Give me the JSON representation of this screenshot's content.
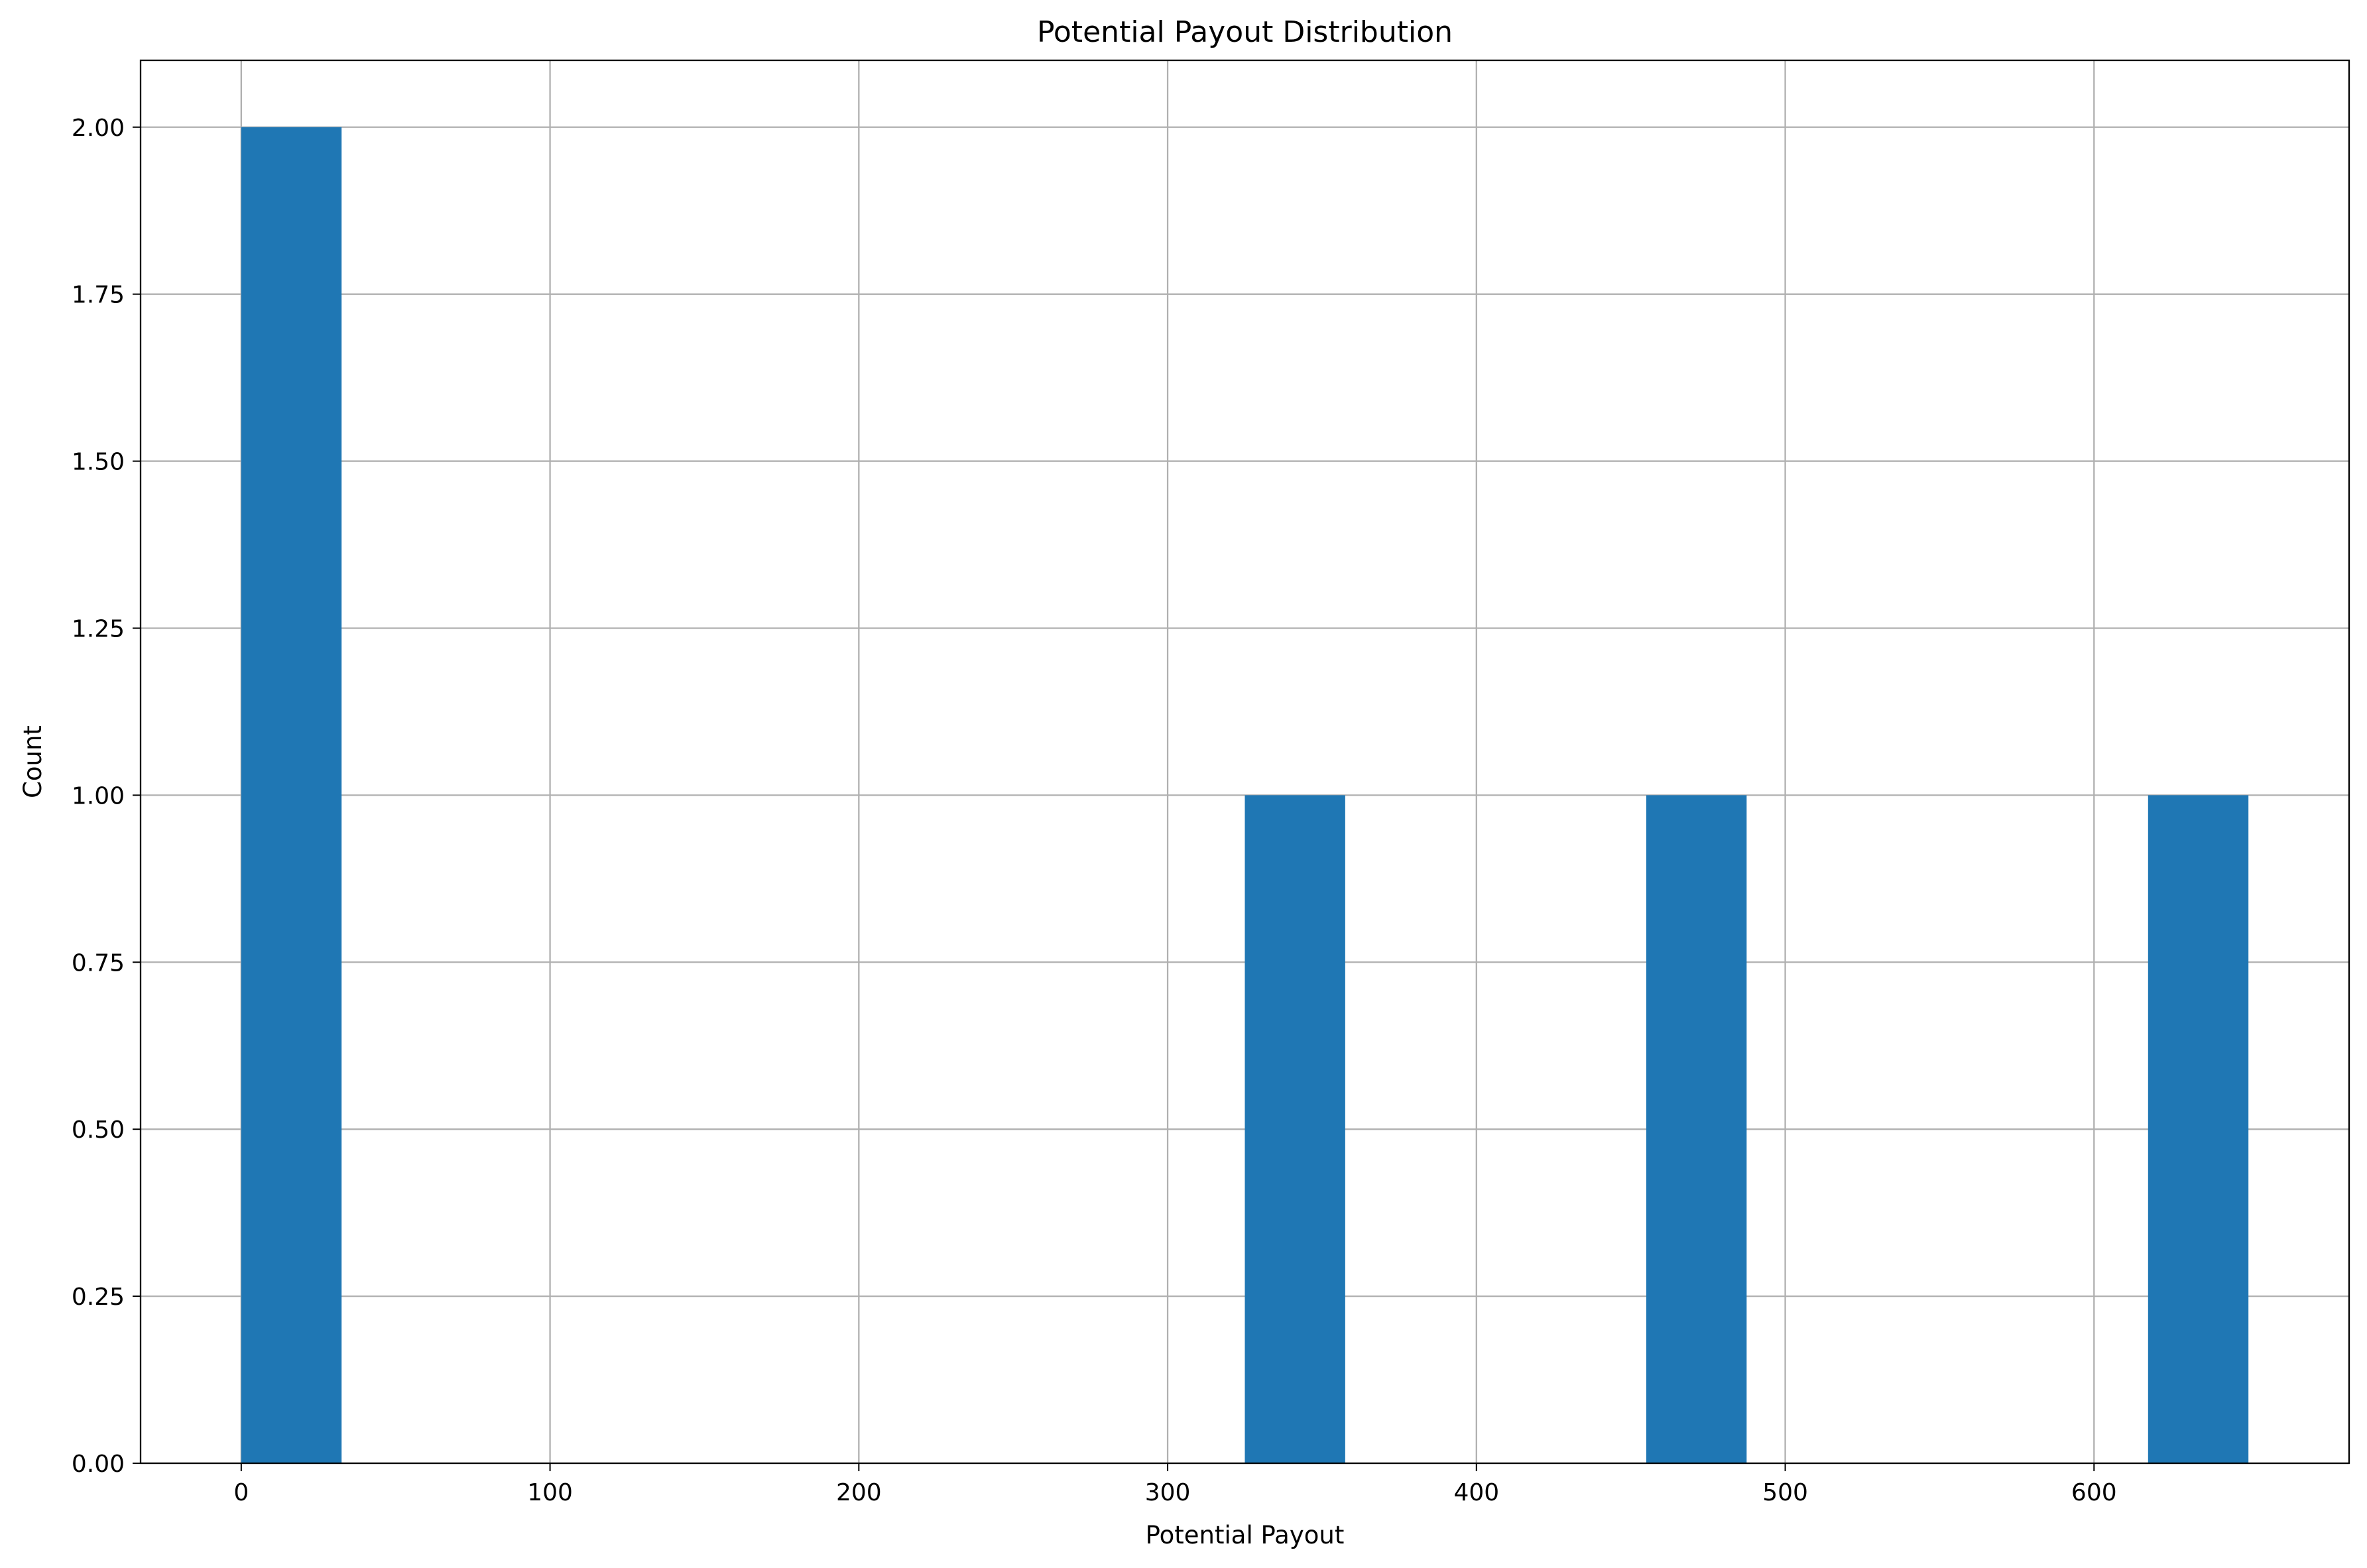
{
  "chart_data": {
    "type": "bar",
    "title": "Potential Payout Distribution",
    "xlabel": "Potential Payout",
    "ylabel": "Count",
    "xlim": [
      -32.6,
      682.6
    ],
    "ylim": [
      0,
      2.1
    ],
    "x_ticks": [
      0,
      100,
      200,
      300,
      400,
      500,
      600
    ],
    "x_tick_labels": [
      "0",
      "100",
      "200",
      "300",
      "400",
      "500",
      "600"
    ],
    "y_ticks": [
      0,
      0.25,
      0.5,
      0.75,
      1.0,
      1.25,
      1.5,
      1.75,
      2.0
    ],
    "y_tick_labels": [
      "0.00",
      "0.25",
      "0.50",
      "0.75",
      "1.00",
      "1.25",
      "1.50",
      "1.75",
      "2.00"
    ],
    "grid": true,
    "bar_color": "#1f77b4",
    "bins": [
      {
        "x0": 0,
        "x1": 32.5,
        "count": 2
      },
      {
        "x0": 325,
        "x1": 357.5,
        "count": 1
      },
      {
        "x0": 455,
        "x1": 487.5,
        "count": 1
      },
      {
        "x0": 617.5,
        "x1": 650,
        "count": 1
      }
    ]
  }
}
